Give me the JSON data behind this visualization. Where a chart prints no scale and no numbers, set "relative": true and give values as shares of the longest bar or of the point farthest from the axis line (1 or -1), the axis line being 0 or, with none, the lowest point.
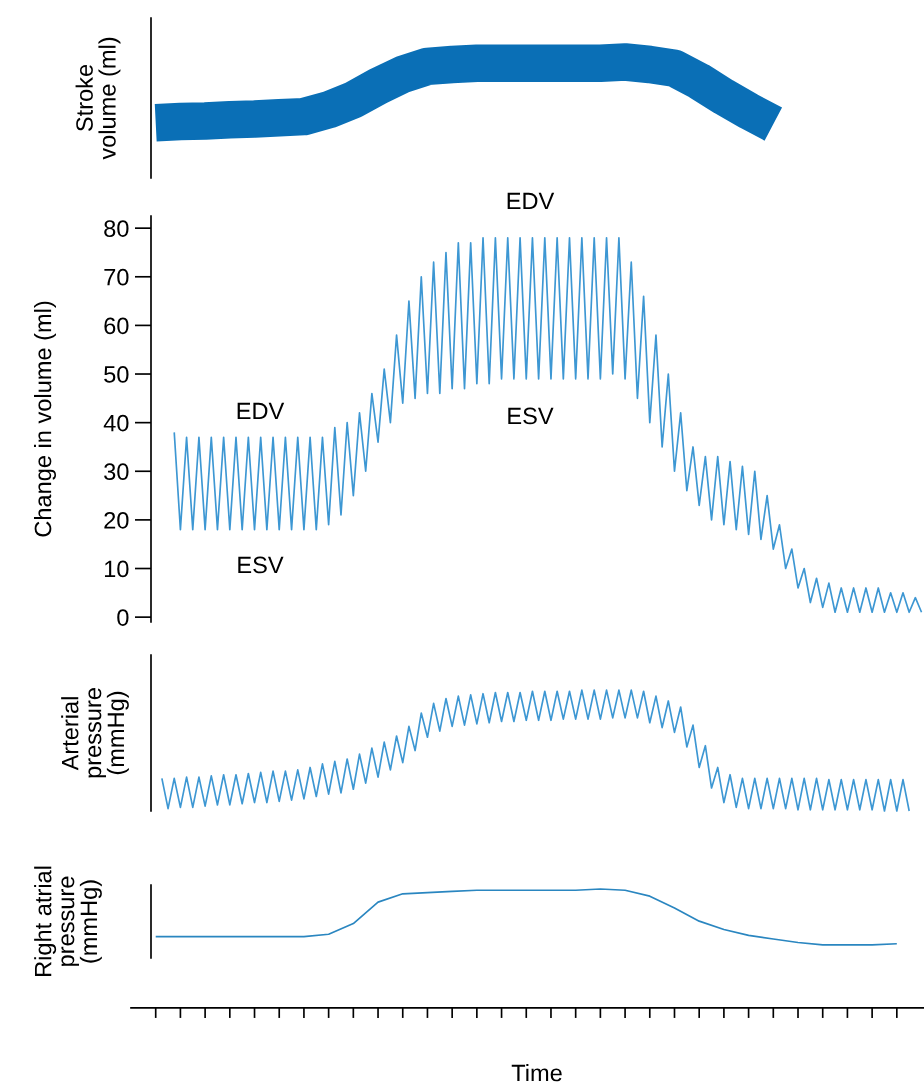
{
  "chart_data": [
    {
      "type": "line",
      "ylabel": "Stroke\nvolume (ml)",
      "relative": true,
      "tick_labels": false,
      "categories": [
        null,
        null,
        null,
        null,
        null,
        null,
        null,
        null,
        null,
        null,
        null,
        null,
        null,
        null,
        null,
        null,
        null,
        null,
        null,
        null,
        null,
        null,
        null,
        null,
        null,
        null
      ],
      "series": [
        {
          "color": "#0a6fb6",
          "values": [
            0.02,
            0.04,
            0.05,
            0.07,
            0.08,
            0.1,
            0.12,
            0.23,
            0.39,
            0.61,
            0.8,
            0.93,
            0.96,
            0.98,
            0.98,
            0.98,
            0.98,
            0.98,
            0.98,
            1.0,
            0.96,
            0.9,
            0.69,
            0.44,
            0.21,
            0
          ]
        }
      ]
    },
    {
      "type": "line",
      "ylabel": "Change in volume (ml)",
      "ylim": [
        -1,
        82.5
      ],
      "yticks": [
        0,
        10,
        20,
        30,
        40,
        50,
        60,
        70,
        80
      ],
      "tick_labels": "y",
      "annotations": [
        "EDV",
        "ESV",
        "EDV",
        "ESV"
      ],
      "categories": [
        null,
        null,
        null,
        null,
        null,
        null,
        null,
        null,
        null,
        null,
        null,
        null,
        null,
        null,
        null,
        null,
        null,
        null,
        null,
        null,
        null,
        null,
        null,
        null,
        null,
        null,
        null,
        null,
        null,
        null,
        null,
        null,
        null,
        null,
        null,
        null,
        null,
        null,
        null,
        null,
        null,
        null,
        null,
        null,
        null,
        null,
        null,
        null,
        null,
        null,
        null,
        null,
        null,
        null,
        null,
        null,
        null,
        null,
        null,
        null,
        null,
        null,
        null,
        null,
        null,
        null,
        null,
        null,
        null,
        null,
        null,
        null,
        null,
        null,
        null,
        null,
        null,
        null,
        null,
        null,
        null,
        null,
        null,
        null,
        null,
        null,
        null,
        null,
        null,
        null,
        null,
        null,
        null,
        null,
        null,
        null,
        null,
        null,
        null,
        null,
        null,
        null,
        null,
        null,
        null,
        null,
        null,
        null,
        null,
        null,
        null,
        null,
        null,
        null,
        null,
        null,
        null,
        null,
        null,
        null,
        null,
        null
      ],
      "series": [
        {
          "color": "#3d97d3",
          "values": [
            38,
            18,
            37,
            18,
            37,
            18,
            37,
            18,
            37,
            18,
            37,
            18,
            37,
            18,
            37,
            18,
            37,
            18,
            37,
            18,
            37,
            18,
            37,
            18,
            37,
            19,
            39,
            21,
            40,
            25,
            42,
            30,
            46,
            36,
            51,
            40,
            58,
            44,
            65,
            45,
            70,
            46,
            73,
            46,
            75,
            47,
            77,
            47,
            77,
            48,
            78,
            48,
            78,
            49,
            78,
            49,
            78,
            49,
            78,
            49,
            78,
            49,
            78,
            49,
            78,
            49,
            78,
            49,
            78,
            49,
            78,
            50,
            78,
            49,
            73,
            45,
            66,
            40,
            58,
            35,
            50,
            30,
            42,
            26,
            35,
            23,
            33,
            20,
            33,
            19,
            32,
            18,
            31,
            17,
            30,
            16,
            25,
            14,
            19,
            10,
            14,
            6,
            10,
            3,
            8,
            2,
            7,
            1,
            6,
            1,
            6,
            1,
            6,
            1,
            6,
            1,
            5,
            1,
            5,
            1,
            4,
            1
          ]
        }
      ]
    },
    {
      "type": "line",
      "ylabel": "Arterial\npressure\n(mmHg)",
      "relative": true,
      "tick_labels": false,
      "categories": [
        null,
        null,
        null,
        null,
        null,
        null,
        null,
        null,
        null,
        null,
        null,
        null,
        null,
        null,
        null,
        null,
        null,
        null,
        null,
        null,
        null,
        null,
        null,
        null,
        null,
        null,
        null,
        null,
        null,
        null,
        null,
        null,
        null,
        null,
        null,
        null,
        null,
        null,
        null,
        null,
        null,
        null,
        null,
        null,
        null,
        null,
        null,
        null,
        null,
        null,
        null,
        null,
        null,
        null,
        null,
        null,
        null,
        null,
        null,
        null,
        null,
        null,
        null,
        null,
        null,
        null,
        null,
        null,
        null,
        null,
        null,
        null,
        null,
        null,
        null,
        null,
        null,
        null,
        null,
        null,
        null,
        null,
        null,
        null,
        null,
        null,
        null,
        null,
        null,
        null,
        null,
        null,
        null,
        null,
        null,
        null,
        null,
        null,
        null,
        null,
        null,
        null,
        null,
        null,
        null,
        null,
        null,
        null,
        null,
        null,
        null,
        null,
        null,
        null,
        null,
        null,
        null,
        null,
        null,
        null,
        null,
        null
      ],
      "series": [
        {
          "color": "#3d97d3",
          "values": [
            0.27,
            0.02,
            0.27,
            0.03,
            0.28,
            0.03,
            0.28,
            0.04,
            0.29,
            0.05,
            0.3,
            0.05,
            0.3,
            0.06,
            0.31,
            0.07,
            0.32,
            0.07,
            0.33,
            0.08,
            0.33,
            0.09,
            0.34,
            0.1,
            0.36,
            0.12,
            0.39,
            0.14,
            0.41,
            0.15,
            0.43,
            0.18,
            0.47,
            0.23,
            0.52,
            0.28,
            0.57,
            0.34,
            0.62,
            0.4,
            0.7,
            0.5,
            0.81,
            0.61,
            0.89,
            0.66,
            0.93,
            0.7,
            0.95,
            0.71,
            0.96,
            0.72,
            0.97,
            0.73,
            0.98,
            0.74,
            0.98,
            0.74,
            0.98,
            0.75,
            0.99,
            0.75,
            0.99,
            0.75,
            0.99,
            0.76,
            0.99,
            0.76,
            1.0,
            0.76,
            1.0,
            0.76,
            1.0,
            0.77,
            1.0,
            0.77,
            1.0,
            0.77,
            0.99,
            0.73,
            0.95,
            0.69,
            0.91,
            0.65,
            0.86,
            0.53,
            0.71,
            0.36,
            0.54,
            0.19,
            0.36,
            0.07,
            0.3,
            0.03,
            0.27,
            0.02,
            0.27,
            0.02,
            0.27,
            0.02,
            0.27,
            0.02,
            0.27,
            0.01,
            0.27,
            0.01,
            0.27,
            0.01,
            0.26,
            0.01,
            0.26,
            0.01,
            0.26,
            0.01,
            0.26,
            0.01,
            0.26,
            0,
            0.26,
            0,
            0.26,
            0
          ]
        }
      ]
    },
    {
      "type": "line",
      "ylabel": "Right atrial\npressure\n(mmHg)",
      "xlabel": "Time",
      "relative": true,
      "tick_labels": false,
      "categories": [
        null,
        null,
        null,
        null,
        null,
        null,
        null,
        null,
        null,
        null,
        null,
        null,
        null,
        null,
        null,
        null,
        null,
        null,
        null,
        null,
        null,
        null,
        null,
        null,
        null,
        null,
        null,
        null,
        null,
        null,
        null
      ],
      "series": [
        {
          "color": "#2a86c0",
          "values": [
            0.6,
            0.6,
            0.6,
            0.6,
            0.6,
            0.6,
            0.6,
            0.62,
            0.71,
            0.89,
            0.96,
            0.97,
            0.98,
            0.99,
            0.99,
            0.99,
            0.99,
            0.99,
            1.0,
            0.99,
            0.94,
            0.84,
            0.73,
            0.66,
            0.61,
            0.58,
            0.55,
            0.53,
            0.53,
            0.53,
            0.54
          ]
        }
      ]
    }
  ]
}
